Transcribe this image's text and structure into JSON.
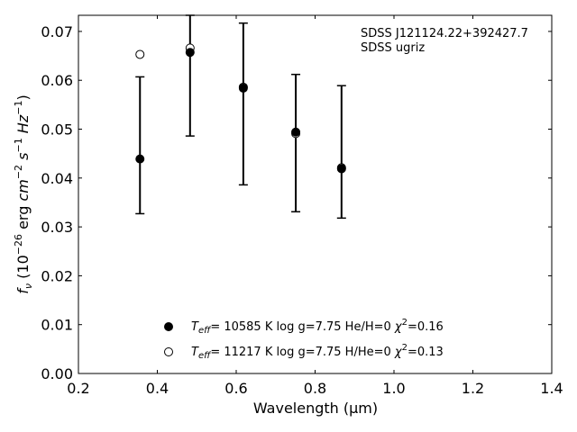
{
  "chart_data": {
    "type": "scatter",
    "xlabel": "Wavelength (μm)",
    "xlim": [
      0.2,
      1.4
    ],
    "ylim": [
      0.0,
      0.0733
    ],
    "x_ticks": [
      0.2,
      0.4,
      0.6,
      0.8,
      1.0,
      1.2,
      1.4
    ],
    "x_tick_labels": [
      "0.2",
      "0.4",
      "0.6",
      "0.8",
      "1.0",
      "1.2",
      "1.4"
    ],
    "y_ticks": [
      0.0,
      0.01,
      0.02,
      0.03,
      0.04,
      0.05,
      0.06,
      0.07
    ],
    "y_tick_labels": [
      "0.00",
      "0.01",
      "0.02",
      "0.03",
      "0.04",
      "0.05",
      "0.06",
      "0.07"
    ],
    "annotation_lines": [
      "SDSS J121124.22+392427.7",
      "SDSS ugriz"
    ],
    "legend_position": "bottom-center",
    "observed": {
      "x": [
        0.356,
        0.483,
        0.618,
        0.751,
        0.867
      ],
      "y": [
        0.0439,
        0.0657,
        0.0584,
        0.0494,
        0.0419
      ],
      "yerr_low": [
        0.0327,
        0.0486,
        0.0386,
        0.0331,
        0.0318
      ],
      "yerr_high": [
        0.0607,
        0.0733,
        0.0717,
        0.0612,
        0.0589
      ]
    },
    "series": [
      {
        "name": "Teff= 10585 K  log g=7.75  He/H=0  χ²=0.16",
        "marker": "filled",
        "x": [
          0.356,
          0.483,
          0.618,
          0.751,
          0.867
        ],
        "y": [
          0.0439,
          0.0657,
          0.0584,
          0.0494,
          0.0419
        ]
      },
      {
        "name": "Teff= 11217 K  log g=7.75  H/He=0  χ²=0.13",
        "marker": "open",
        "x": [
          0.356,
          0.483,
          0.618,
          0.751,
          0.867
        ],
        "y": [
          0.0653,
          0.0666,
          0.0586,
          0.0491,
          0.0421
        ]
      }
    ]
  }
}
